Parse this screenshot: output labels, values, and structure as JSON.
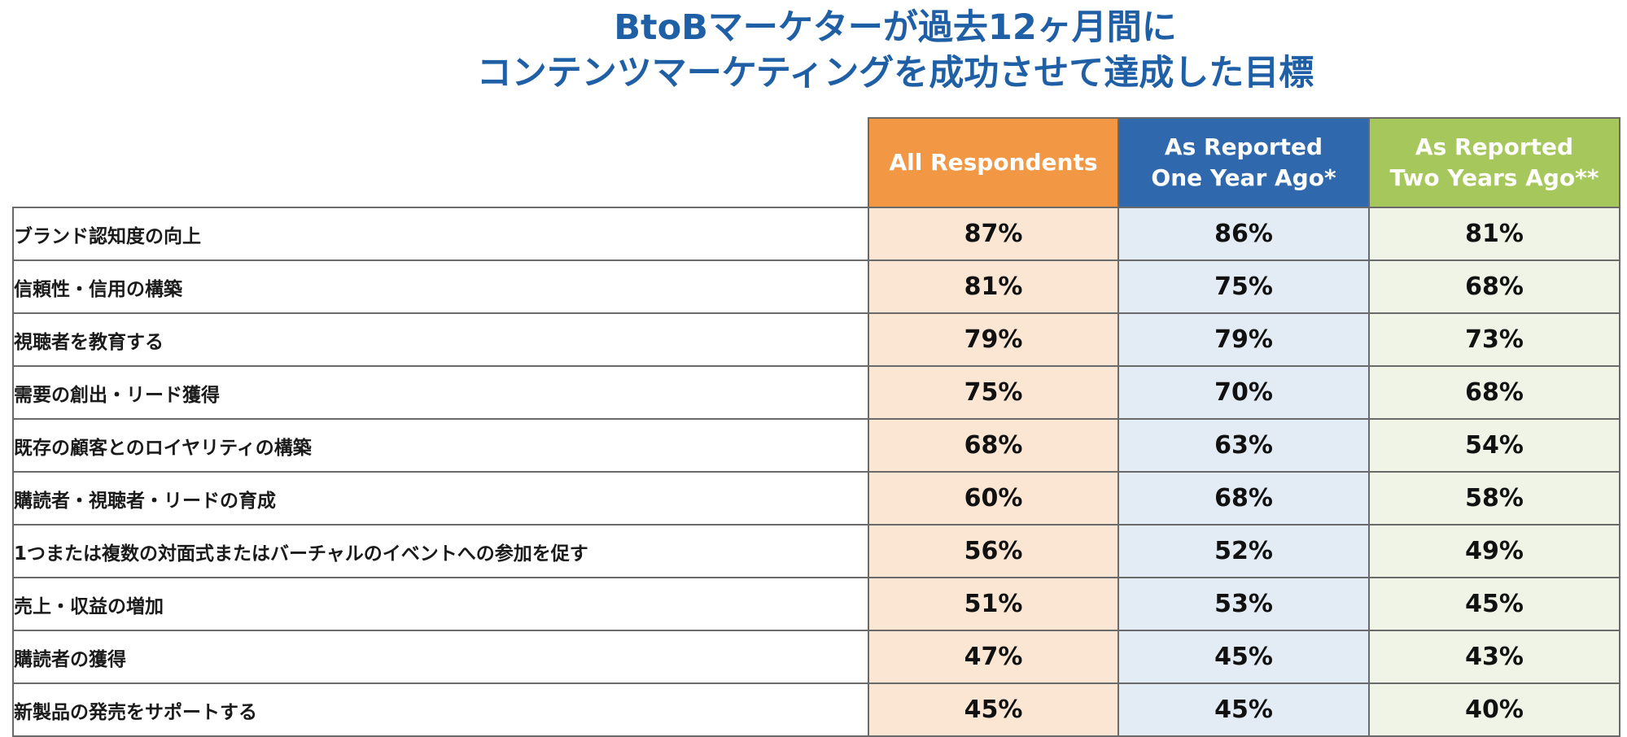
{
  "chart_data": {
    "type": "table",
    "title_lines": [
      "BtoBマーケターが過去12ヶ月間に",
      "コンテンツマーケティングを成功させて達成した目標"
    ],
    "columns": [
      {
        "lines": [
          "All Respondents"
        ],
        "color": "#f29845",
        "cell_color": "#fbe6d3"
      },
      {
        "lines": [
          "As Reported",
          "One Year Ago*"
        ],
        "color": "#2f68ad",
        "cell_color": "#e3ebf4"
      },
      {
        "lines": [
          "As Reported",
          "Two Years Ago**"
        ],
        "color": "#a6c75b",
        "cell_color": "#f0f4e6"
      }
    ],
    "rows": [
      {
        "label": "ブランド認知度の向上",
        "values": [
          "87%",
          "86%",
          "81%"
        ]
      },
      {
        "label": "信頼性・信用の構築",
        "values": [
          "81%",
          "75%",
          "68%"
        ]
      },
      {
        "label": "視聴者を教育する",
        "values": [
          "79%",
          "79%",
          "73%"
        ]
      },
      {
        "label": "需要の創出・リード獲得",
        "values": [
          "75%",
          "70%",
          "68%"
        ]
      },
      {
        "label": "既存の顧客とのロイヤリティの構築",
        "values": [
          "68%",
          "63%",
          "54%"
        ]
      },
      {
        "label": "購読者・視聴者・リードの育成",
        "values": [
          "60%",
          "68%",
          "58%"
        ]
      },
      {
        "label": "1つまたは複数の対面式またはバーチャルのイベントへの参加を促す",
        "values": [
          "56%",
          "52%",
          "49%"
        ]
      },
      {
        "label": "売上・収益の増加",
        "values": [
          "51%",
          "53%",
          "45%"
        ]
      },
      {
        "label": "購読者の獲得",
        "values": [
          "47%",
          "45%",
          "43%"
        ]
      },
      {
        "label": "新製品の発売をサポートする",
        "values": [
          "45%",
          "45%",
          "40%"
        ]
      }
    ]
  }
}
